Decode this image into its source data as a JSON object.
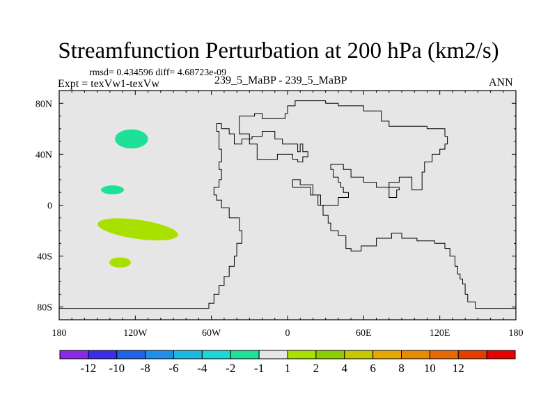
{
  "chart_data": {
    "type": "contour-map",
    "title": "Streamfunction Perturbation at 200 hPa (km2/s)",
    "stats_label": "rmsd= 0.434596 diff= 4.68723e-09",
    "left_label": "Expt = texVw1-texVw",
    "center_label": "239_5_MaBP - 239_5_MaBP",
    "right_label": "ANN",
    "x_range": [
      -180,
      180
    ],
    "y_range": [
      -90,
      90
    ],
    "x_ticks": [
      {
        "value": -180,
        "label": "180"
      },
      {
        "value": -120,
        "label": "120W"
      },
      {
        "value": -60,
        "label": "60W"
      },
      {
        "value": 0,
        "label": "0"
      },
      {
        "value": 60,
        "label": "60E"
      },
      {
        "value": 120,
        "label": "120E"
      },
      {
        "value": 180,
        "label": "180"
      }
    ],
    "y_ticks": [
      {
        "value": 80,
        "label": "80N"
      },
      {
        "value": 40,
        "label": "40N"
      },
      {
        "value": 0,
        "label": "0"
      },
      {
        "value": -40,
        "label": "40S"
      },
      {
        "value": -80,
        "label": "80S"
      }
    ],
    "background_color": "#e6e6e6",
    "colorbar": {
      "colors": [
        "#8a2be2",
        "#3b2ee6",
        "#1e63e8",
        "#1e90e6",
        "#1eb7e0",
        "#1fd6d6",
        "#1ee096",
        "#e6e6e6",
        "#a8e000",
        "#8ccd00",
        "#c7c700",
        "#e6a800",
        "#e68a00",
        "#e66a00",
        "#e63c00",
        "#e60000"
      ],
      "labels": [
        "-12",
        "-10",
        "-8",
        "-6",
        "-4",
        "-2",
        "-1",
        "1",
        "2",
        "4",
        "6",
        "8",
        "10",
        "12"
      ]
    },
    "anomalies": [
      {
        "lon": -123,
        "lat": 52,
        "rlon": 13,
        "rlat": 7.5,
        "color": "#1ee096",
        "level": "-2 to -1"
      },
      {
        "lon": -138,
        "lat": 12,
        "rlon": 9,
        "rlat": 3.5,
        "color": "#1ee096",
        "level": "-2 to -1"
      },
      {
        "lon": -118,
        "lat": -19,
        "rlon": 32,
        "rlat": 7.5,
        "color": "#a8e000",
        "level": "1 to 2"
      },
      {
        "lon": -132,
        "lat": -45,
        "rlon": 8.5,
        "rlat": 4,
        "color": "#a8e000",
        "level": "1 to 2"
      }
    ],
    "coastlines": [
      [
        [
          -180,
          -81
        ],
        [
          -62,
          -81
        ],
        [
          -62,
          -77
        ],
        [
          -58,
          -77
        ],
        [
          -58,
          -70
        ],
        [
          -54,
          -70
        ],
        [
          -54,
          -63
        ],
        [
          -50,
          -63
        ],
        [
          -50,
          -56
        ],
        [
          -46,
          -56
        ],
        [
          -46,
          -48
        ],
        [
          -42,
          -48
        ],
        [
          -42,
          -40
        ],
        [
          -40,
          -40
        ],
        [
          -40,
          -30
        ],
        [
          -36,
          -30
        ],
        [
          -36,
          -20
        ],
        [
          -38,
          -20
        ],
        [
          -38,
          -10
        ],
        [
          -46,
          -10
        ],
        [
          -46,
          -2
        ],
        [
          -52,
          -2
        ],
        [
          -52,
          4
        ],
        [
          -56,
          4
        ],
        [
          -56,
          8
        ],
        [
          -58,
          8
        ],
        [
          -58,
          14
        ],
        [
          -54,
          14
        ],
        [
          -54,
          20
        ],
        [
          -52,
          20
        ],
        [
          -52,
          28
        ],
        [
          -54,
          28
        ],
        [
          -54,
          34
        ],
        [
          -52,
          34
        ],
        [
          -52,
          44
        ],
        [
          -54,
          44
        ],
        [
          -54,
          58
        ],
        [
          -56,
          58
        ],
        [
          -56,
          64
        ],
        [
          -52,
          64
        ],
        [
          -52,
          60
        ],
        [
          -46,
          60
        ],
        [
          -46,
          56
        ],
        [
          -42,
          56
        ],
        [
          -42,
          48
        ],
        [
          -36,
          48
        ],
        [
          -36,
          52
        ],
        [
          -28,
          52
        ],
        [
          -28,
          54
        ],
        [
          -20,
          54
        ],
        [
          -20,
          58
        ],
        [
          -10,
          58
        ],
        [
          -10,
          52
        ],
        [
          -4,
          52
        ],
        [
          -4,
          48
        ],
        [
          8,
          48
        ],
        [
          8,
          42
        ],
        [
          10,
          42
        ],
        [
          10,
          48
        ],
        [
          12,
          48
        ],
        [
          12,
          42
        ],
        [
          16,
          42
        ],
        [
          16,
          38
        ],
        [
          12,
          38
        ],
        [
          12,
          34
        ],
        [
          8,
          34
        ],
        [
          8,
          36
        ],
        [
          4,
          36
        ],
        [
          4,
          40
        ],
        [
          -8,
          40
        ],
        [
          -8,
          36
        ],
        [
          -24,
          36
        ],
        [
          -24,
          48
        ],
        [
          -30,
          48
        ],
        [
          -30,
          56
        ],
        [
          -38,
          56
        ],
        [
          -38,
          70
        ],
        [
          -26,
          70
        ],
        [
          -26,
          72
        ],
        [
          -20,
          72
        ],
        [
          -20,
          68
        ],
        [
          -2,
          68
        ],
        [
          -2,
          72
        ],
        [
          0,
          72
        ],
        [
          0,
          78
        ],
        [
          6,
          78
        ],
        [
          6,
          82
        ],
        [
          30,
          82
        ],
        [
          30,
          80
        ],
        [
          40,
          80
        ],
        [
          40,
          78
        ],
        [
          60,
          78
        ],
        [
          60,
          74
        ],
        [
          74,
          74
        ],
        [
          74,
          66
        ],
        [
          80,
          66
        ],
        [
          80,
          62
        ],
        [
          110,
          62
        ],
        [
          110,
          60
        ],
        [
          124,
          60
        ],
        [
          124,
          54
        ],
        [
          126,
          54
        ],
        [
          126,
          48
        ],
        [
          124,
          48
        ],
        [
          124,
          44
        ],
        [
          120,
          44
        ],
        [
          120,
          40
        ],
        [
          114,
          40
        ],
        [
          114,
          34
        ],
        [
          108,
          34
        ],
        [
          108,
          26
        ],
        [
          106,
          26
        ],
        [
          106,
          12
        ],
        [
          98,
          12
        ],
        [
          98,
          22
        ],
        [
          88,
          22
        ],
        [
          88,
          18
        ],
        [
          80,
          18
        ],
        [
          80,
          6
        ],
        [
          86,
          6
        ],
        [
          86,
          12
        ],
        [
          88,
          12
        ],
        [
          88,
          14
        ],
        [
          70,
          14
        ],
        [
          70,
          18
        ],
        [
          60,
          18
        ],
        [
          60,
          22
        ],
        [
          50,
          22
        ],
        [
          50,
          28
        ],
        [
          44,
          28
        ],
        [
          44,
          32
        ],
        [
          34,
          32
        ],
        [
          34,
          28
        ],
        [
          36,
          28
        ],
        [
          36,
          22
        ],
        [
          40,
          22
        ],
        [
          40,
          18
        ],
        [
          42,
          18
        ],
        [
          42,
          14
        ],
        [
          44,
          14
        ],
        [
          44,
          10
        ],
        [
          48,
          10
        ],
        [
          48,
          6
        ],
        [
          40,
          6
        ],
        [
          40,
          0
        ],
        [
          26,
          0
        ],
        [
          26,
          8
        ],
        [
          20,
          8
        ],
        [
          20,
          16
        ],
        [
          10,
          16
        ],
        [
          10,
          20
        ],
        [
          4,
          20
        ],
        [
          4,
          14
        ],
        [
          18,
          14
        ],
        [
          18,
          8
        ],
        [
          24,
          8
        ],
        [
          24,
          0
        ],
        [
          28,
          0
        ],
        [
          28,
          -8
        ],
        [
          32,
          -8
        ],
        [
          32,
          -14
        ],
        [
          34,
          -14
        ],
        [
          34,
          -20
        ],
        [
          40,
          -20
        ],
        [
          40,
          -24
        ],
        [
          46,
          -24
        ],
        [
          46,
          -34
        ],
        [
          50,
          -34
        ],
        [
          50,
          -36
        ],
        [
          58,
          -36
        ],
        [
          58,
          -32
        ],
        [
          70,
          -32
        ],
        [
          70,
          -26
        ],
        [
          82,
          -26
        ],
        [
          82,
          -22
        ],
        [
          90,
          -22
        ],
        [
          90,
          -26
        ],
        [
          102,
          -26
        ],
        [
          102,
          -28
        ],
        [
          116,
          -28
        ],
        [
          116,
          -30
        ],
        [
          124,
          -30
        ],
        [
          124,
          -34
        ],
        [
          128,
          -34
        ],
        [
          128,
          -40
        ],
        [
          132,
          -40
        ],
        [
          132,
          -48
        ],
        [
          134,
          -48
        ],
        [
          134,
          -54
        ],
        [
          136,
          -54
        ],
        [
          136,
          -58
        ],
        [
          138,
          -58
        ],
        [
          138,
          -62
        ],
        [
          140,
          -62
        ],
        [
          140,
          -70
        ],
        [
          142,
          -70
        ],
        [
          142,
          -76
        ],
        [
          148,
          -76
        ],
        [
          148,
          -81
        ],
        [
          180,
          -81
        ]
      ]
    ]
  }
}
